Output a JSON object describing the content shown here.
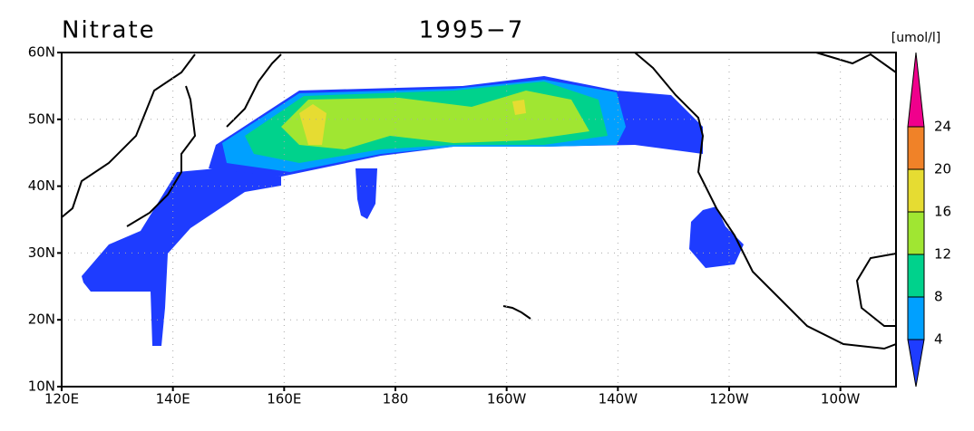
{
  "title": "Nitrate",
  "date": "1995−7",
  "unit": "[umol/l]",
  "map": {
    "lon_range": [
      120,
      270
    ],
    "lat_range": [
      10,
      60
    ],
    "lat_ticks": [
      {
        "value": 60,
        "label": "60N"
      },
      {
        "value": 50,
        "label": "50N"
      },
      {
        "value": 40,
        "label": "40N"
      },
      {
        "value": 30,
        "label": "30N"
      },
      {
        "value": 20,
        "label": "20N"
      },
      {
        "value": 10,
        "label": "10N"
      }
    ],
    "lon_ticks": [
      {
        "value": 120,
        "label": "120E"
      },
      {
        "value": 140,
        "label": "140E"
      },
      {
        "value": 160,
        "label": "160E"
      },
      {
        "value": 180,
        "label": "180"
      },
      {
        "value": 200,
        "label": "160W"
      },
      {
        "value": 220,
        "label": "140W"
      },
      {
        "value": 240,
        "label": "120W"
      },
      {
        "value": 260,
        "label": "100W"
      }
    ],
    "grid": true
  },
  "colorbar": {
    "levels": [
      4,
      8,
      12,
      16,
      20,
      24
    ],
    "colors": [
      "#1e3cff",
      "#00a0ff",
      "#00d28c",
      "#a0e632",
      "#e6dc32",
      "#f08228",
      "#f0008c"
    ]
  }
}
